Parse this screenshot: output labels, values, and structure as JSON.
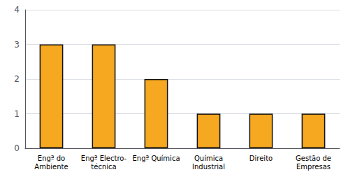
{
  "chart_data": {
    "type": "bar",
    "categories": [
      "Engª do\nAmbiente",
      "Engª Electro-\ntécnica",
      "Engª Química",
      "Química\nIndustrial",
      "Direito",
      "Gestão de\nEmpresas"
    ],
    "values": [
      3,
      3,
      2,
      1,
      1,
      1
    ],
    "color": "#F5A820",
    "ylim": [
      0,
      4
    ],
    "yticks": [
      0,
      1,
      2,
      3,
      4
    ],
    "grid": true
  }
}
